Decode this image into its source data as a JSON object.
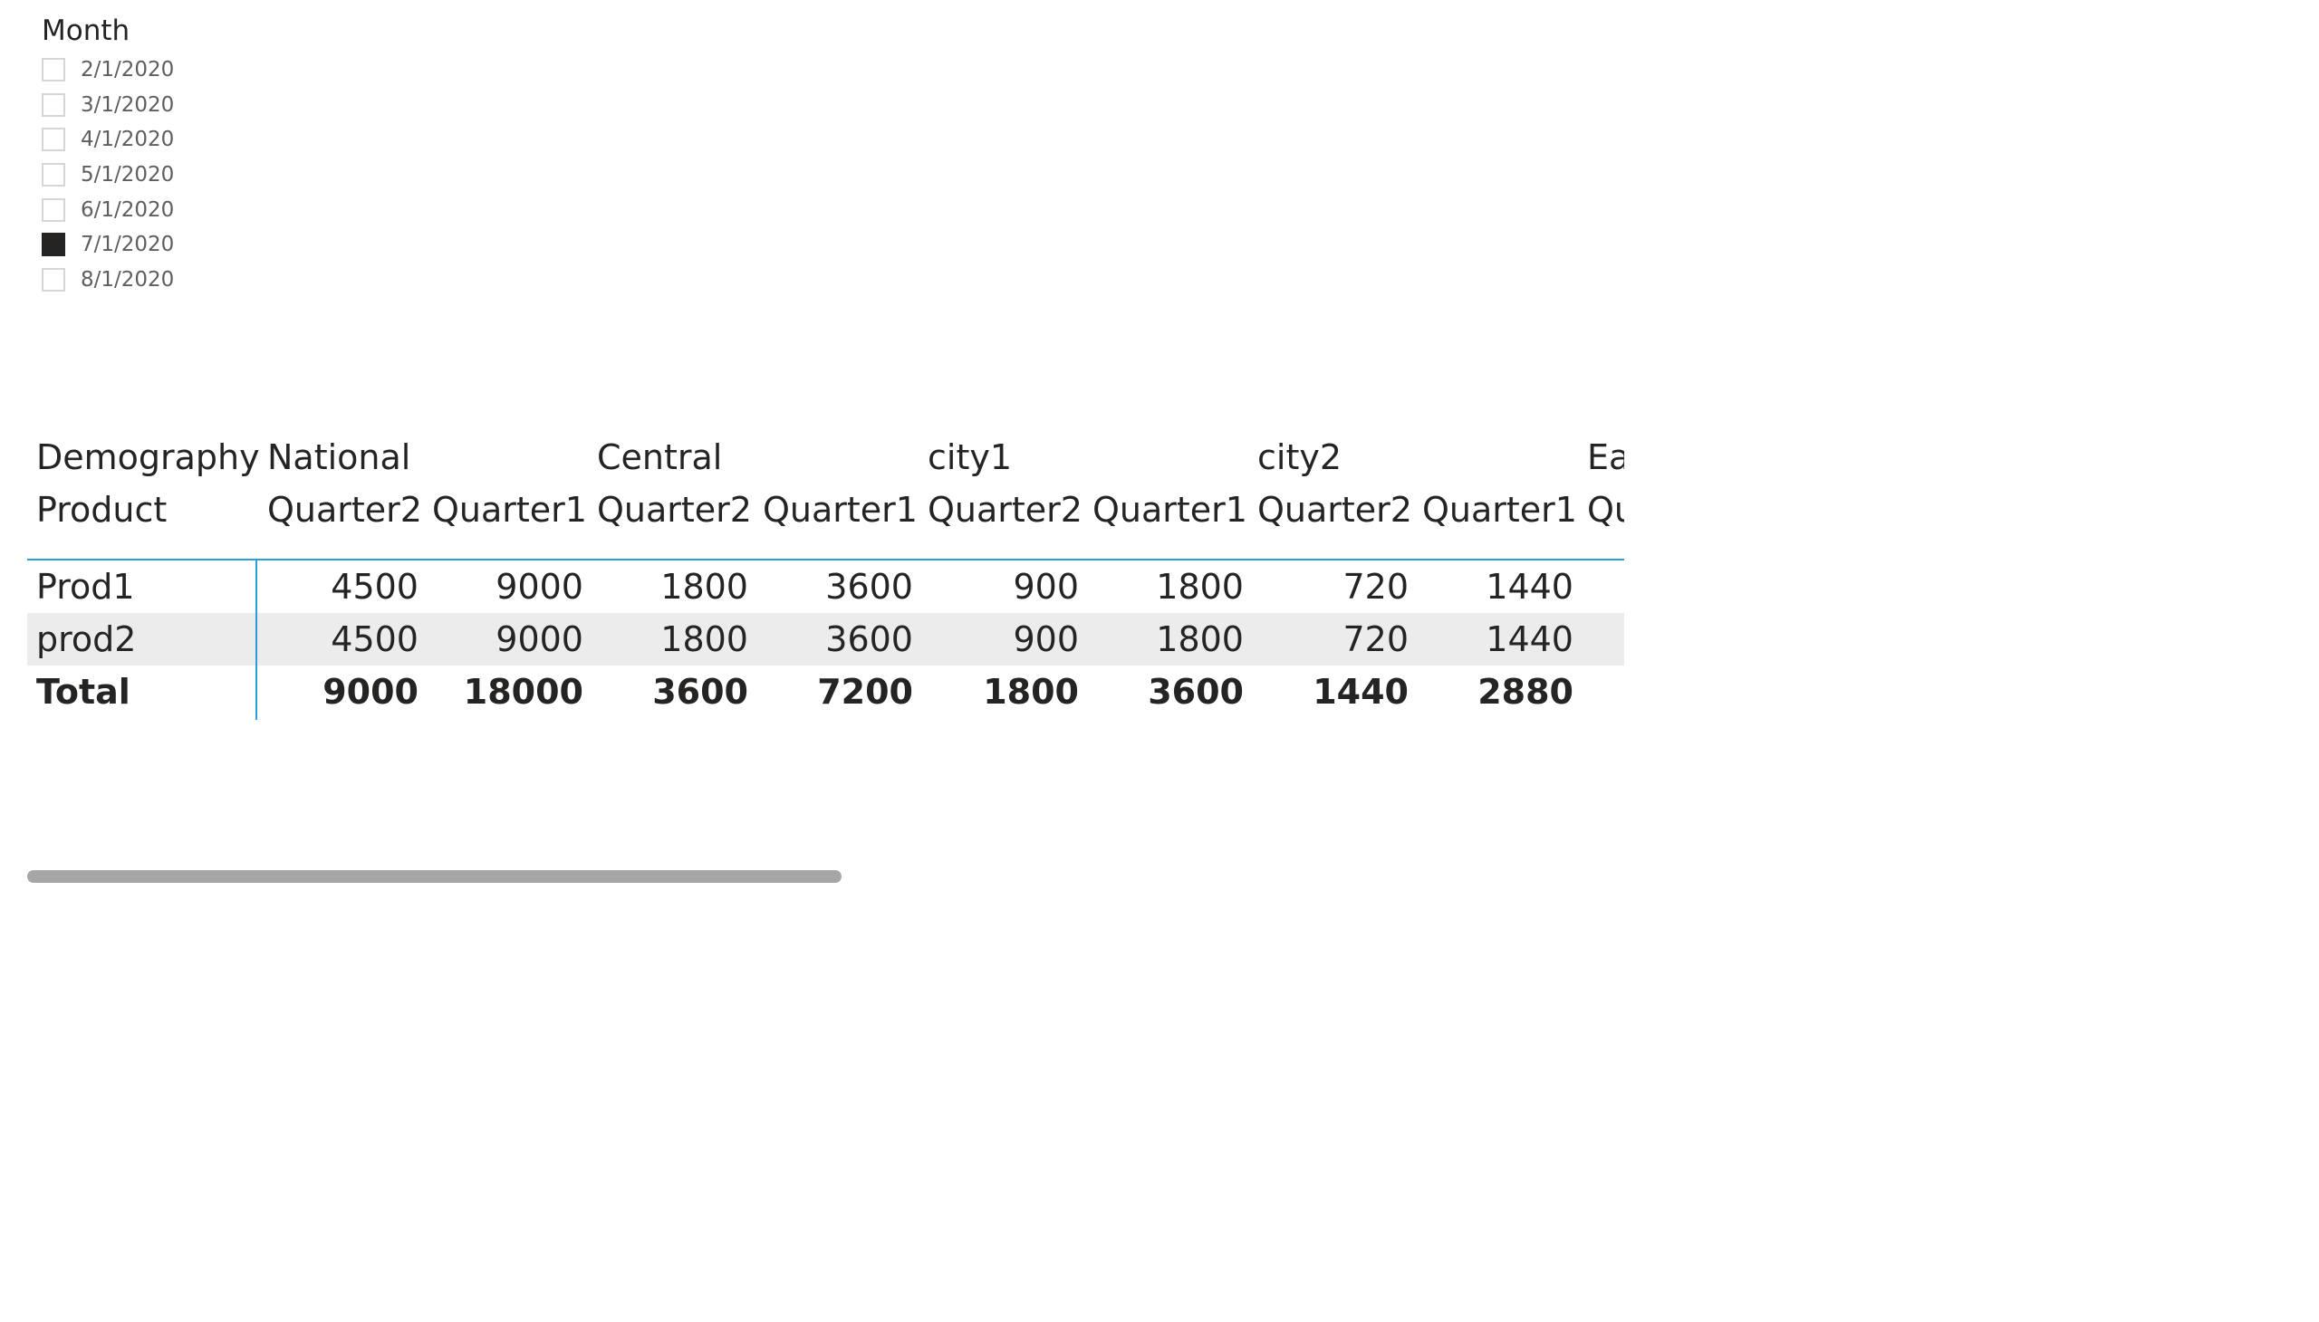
{
  "slicer": {
    "title": "Month",
    "items": [
      {
        "label": "2/1/2020",
        "checked": false
      },
      {
        "label": "3/1/2020",
        "checked": false
      },
      {
        "label": "4/1/2020",
        "checked": false
      },
      {
        "label": "5/1/2020",
        "checked": false
      },
      {
        "label": "6/1/2020",
        "checked": false
      },
      {
        "label": "7/1/2020",
        "checked": true
      },
      {
        "label": "8/1/2020",
        "checked": false
      }
    ]
  },
  "matrix": {
    "row_header_1": "Demography",
    "row_header_2": "Product",
    "groups": [
      "National",
      "Central",
      "city1",
      "city2",
      "Ea"
    ],
    "subheaders": [
      "Quarter2",
      "Quarter1",
      "Quarter2",
      "Quarter1",
      "Quarter2",
      "Quarter1",
      "Quarter2",
      "Quarter1",
      "Qu"
    ],
    "rows": [
      {
        "label": "Prod1",
        "values": [
          "4500",
          "9000",
          "1800",
          "3600",
          "900",
          "1800",
          "720",
          "1440"
        ]
      },
      {
        "label": "prod2",
        "values": [
          "4500",
          "9000",
          "1800",
          "3600",
          "900",
          "1800",
          "720",
          "1440"
        ]
      },
      {
        "label": "Total",
        "values": [
          "9000",
          "18000",
          "3600",
          "7200",
          "1800",
          "3600",
          "1440",
          "2880"
        ]
      }
    ],
    "colors": {
      "accent": "#2c9cdb",
      "alt_row": "#ececec",
      "text": "#252423"
    }
  },
  "scrollbar": {
    "thumb_fraction": 0.51
  }
}
